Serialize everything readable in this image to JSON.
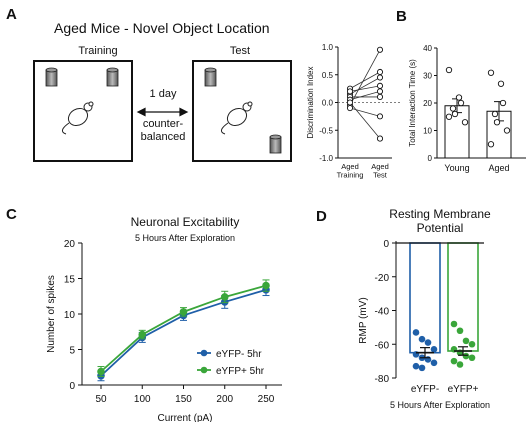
{
  "figure": {
    "panels": {
      "A": {
        "letter": "A",
        "title": "Aged Mice - Novel Object Location",
        "training_label": "Training",
        "test_label": "Test",
        "interval_label": "1 day",
        "counterbalanced_label": "counter-\nbalanced"
      },
      "B": {
        "letter": "B"
      },
      "C": {
        "letter": "C"
      },
      "D": {
        "letter": "D"
      }
    }
  },
  "chart_data": [
    {
      "id": "discrimination",
      "type": "scatter",
      "ylabel": "Discrimination Index",
      "categories": [
        "Aged\nTraining",
        "Aged\nTest"
      ],
      "ylim": [
        -1.0,
        1.0
      ],
      "yticks": [
        -1.0,
        -0.5,
        0.0,
        0.5,
        1.0
      ],
      "yticklabels": [
        "-1.0",
        "-0.5",
        "0.0",
        "0.5",
        "1.0"
      ],
      "reference_line": 0.0,
      "pairs": [
        [
          -0.05,
          0.95
        ],
        [
          0.25,
          0.55
        ],
        [
          0.15,
          0.45
        ],
        [
          0.2,
          0.3
        ],
        [
          0.1,
          0.1
        ],
        [
          0.05,
          0.2
        ],
        [
          -0.1,
          -0.25
        ],
        [
          0.0,
          -0.65
        ]
      ]
    },
    {
      "id": "interaction_time",
      "type": "bar",
      "ylabel": "Total Interaction Time (s)",
      "categories": [
        "Young",
        "Aged"
      ],
      "ylim": [
        0,
        40
      ],
      "yticks": [
        0,
        10,
        20,
        30,
        40
      ],
      "yticklabels": [
        "0",
        "10",
        "20",
        "30",
        "40"
      ],
      "values": [
        19,
        17
      ],
      "errors": [
        2.5,
        3.5
      ],
      "points": [
        [
          32,
          22,
          20,
          18,
          16,
          13,
          15
        ],
        [
          31,
          27,
          20,
          16,
          13,
          10,
          5
        ]
      ]
    },
    {
      "id": "excitability",
      "type": "line",
      "title": "Neuronal Excitability",
      "subtitle": "5 Hours After Exploration",
      "xlabel": "Current (pA)",
      "ylabel": "Number of spikes",
      "x": [
        50,
        100,
        150,
        200,
        250
      ],
      "xticklabels": [
        "50",
        "100",
        "150",
        "200",
        "250"
      ],
      "ylim": [
        0,
        20
      ],
      "yticks": [
        0,
        5,
        10,
        15,
        20
      ],
      "yticklabels": [
        "0",
        "5",
        "10",
        "15",
        "20"
      ],
      "legend_position": "bottom-right",
      "series": [
        {
          "name": "eYFP- 5hr",
          "color": "#1f5fa8",
          "values": [
            1.3,
            6.7,
            9.8,
            11.7,
            13.4
          ],
          "errors": [
            0.7,
            0.7,
            0.7,
            0.9,
            0.8
          ]
        },
        {
          "name": "eYFP+ 5hr",
          "color": "#3aa63a",
          "values": [
            1.9,
            7.1,
            10.3,
            12.4,
            14.0
          ],
          "errors": [
            0.7,
            0.6,
            0.6,
            0.8,
            0.8
          ]
        }
      ]
    },
    {
      "id": "rmp",
      "type": "bar",
      "title": "Resting Membrane\nPotential",
      "ylabel": "RMP (mV)",
      "xlabel": "5 Hours After Exploration",
      "categories": [
        "eYFP-",
        "eYFP+"
      ],
      "ylim": [
        -80,
        0
      ],
      "yticks": [
        0,
        -20,
        -40,
        -60,
        -80
      ],
      "yticklabels": [
        "0",
        "-20",
        "-40",
        "-60",
        "-80"
      ],
      "values": [
        -65,
        -64
      ],
      "errors": [
        3,
        2.5
      ],
      "colors": [
        "#1f5fa8",
        "#3aa63a"
      ],
      "points": [
        [
          -53,
          -57,
          -59,
          -63,
          -66,
          -68,
          -69,
          -71,
          -73,
          -74
        ],
        [
          -48,
          -52,
          -58,
          -60,
          -63,
          -65,
          -67,
          -68,
          -70,
          -72
        ]
      ]
    }
  ]
}
